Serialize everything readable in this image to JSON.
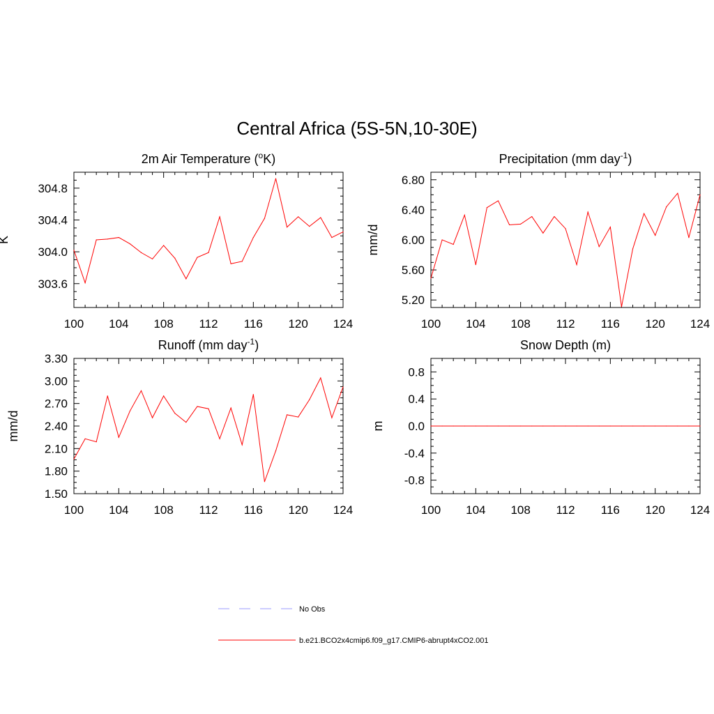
{
  "figure": {
    "title": "Central Africa (5S-5N,10-30E)"
  },
  "colors": {
    "model_line": "#ff0000",
    "obs_line": "#9999ff",
    "axis": "#000000",
    "background": "#ffffff"
  },
  "chart_data": [
    {
      "type": "line",
      "title": "2m Air Temperature (oK)",
      "title_parts": [
        "2m Air Temperature (",
        "o",
        "K)"
      ],
      "ylabel": "K",
      "xlabel": "",
      "xlim": [
        100,
        124
      ],
      "ylim": [
        303.3,
        305.0
      ],
      "xticks": [
        100,
        104,
        108,
        112,
        116,
        120,
        124
      ],
      "xtick_labels": [
        "100",
        "104",
        "108",
        "112",
        "116",
        "120",
        "124"
      ],
      "yticks": [
        303.6,
        304.0,
        304.4,
        304.8
      ],
      "ytick_labels": [
        "303.6",
        "304.0",
        "304.4",
        "304.8"
      ],
      "grid": false,
      "x": [
        100,
        101,
        102,
        103,
        104,
        105,
        106,
        107,
        108,
        109,
        110,
        111,
        112,
        113,
        114,
        115,
        116,
        117,
        118,
        119,
        120,
        121,
        122,
        123,
        124
      ],
      "series": [
        {
          "name": "b.e21.BCO2x4cmip6.f09_g17.CMIP6-abrupt4xCO2.001",
          "values": [
            304.02,
            303.61,
            304.15,
            304.16,
            304.18,
            304.1,
            303.99,
            303.91,
            304.08,
            303.92,
            303.66,
            303.93,
            303.99,
            304.44,
            303.85,
            303.88,
            304.18,
            304.42,
            304.92,
            304.31,
            304.44,
            304.32,
            304.43,
            304.18,
            304.25
          ]
        }
      ]
    },
    {
      "type": "line",
      "title": "Precipitation (mm day-1)",
      "title_parts": [
        "Precipitation (mm day",
        "-1",
        ")"
      ],
      "ylabel": "mm/d",
      "xlabel": "",
      "xlim": [
        100,
        124
      ],
      "ylim": [
        5.1,
        6.9
      ],
      "xticks": [
        100,
        104,
        108,
        112,
        116,
        120,
        124
      ],
      "xtick_labels": [
        "100",
        "104",
        "108",
        "112",
        "116",
        "120",
        "124"
      ],
      "yticks": [
        5.2,
        5.6,
        6.0,
        6.4,
        6.8
      ],
      "ytick_labels": [
        "5.20",
        "5.60",
        "6.00",
        "6.40",
        "6.80"
      ],
      "grid": false,
      "x": [
        100,
        101,
        102,
        103,
        104,
        105,
        106,
        107,
        108,
        109,
        110,
        111,
        112,
        113,
        114,
        115,
        116,
        117,
        118,
        119,
        120,
        121,
        122,
        123,
        124
      ],
      "series": [
        {
          "name": "b.e21.BCO2x4cmip6.f09_g17.CMIP6-abrupt4xCO2.001",
          "values": [
            5.49,
            6.0,
            5.94,
            6.33,
            5.67,
            6.43,
            6.52,
            6.2,
            6.21,
            6.31,
            6.09,
            6.31,
            6.15,
            5.67,
            6.37,
            5.91,
            6.17,
            5.11,
            5.88,
            6.35,
            6.06,
            6.44,
            6.62,
            6.03,
            6.6
          ]
        }
      ]
    },
    {
      "type": "line",
      "title": "Runoff (mm day-1)",
      "title_parts": [
        "Runoff (mm day",
        "-1",
        ")"
      ],
      "ylabel": "mm/d",
      "xlabel": "",
      "xlim": [
        100,
        124
      ],
      "ylim": [
        1.5,
        3.3
      ],
      "xticks": [
        100,
        104,
        108,
        112,
        116,
        120,
        124
      ],
      "xtick_labels": [
        "100",
        "104",
        "108",
        "112",
        "116",
        "120",
        "124"
      ],
      "yticks": [
        1.5,
        1.8,
        2.1,
        2.4,
        2.7,
        3.0,
        3.3
      ],
      "ytick_labels": [
        "1.50",
        "1.80",
        "2.10",
        "2.40",
        "2.70",
        "3.00",
        "3.30"
      ],
      "grid": false,
      "x": [
        100,
        101,
        102,
        103,
        104,
        105,
        106,
        107,
        108,
        109,
        110,
        111,
        112,
        113,
        114,
        115,
        116,
        117,
        118,
        119,
        120,
        121,
        122,
        123,
        124
      ],
      "series": [
        {
          "name": "b.e21.BCO2x4cmip6.f09_g17.CMIP6-abrupt4xCO2.001",
          "values": [
            1.96,
            2.23,
            2.19,
            2.8,
            2.25,
            2.6,
            2.87,
            2.51,
            2.8,
            2.57,
            2.45,
            2.66,
            2.63,
            2.23,
            2.64,
            2.15,
            2.82,
            1.66,
            2.07,
            2.55,
            2.52,
            2.75,
            3.04,
            2.51,
            2.92
          ]
        }
      ]
    },
    {
      "type": "line",
      "title": "Snow Depth (m)",
      "title_parts": [
        "Snow Depth (m)",
        "",
        ""
      ],
      "ylabel": "m",
      "xlabel": "",
      "xlim": [
        100,
        124
      ],
      "ylim": [
        -1.0,
        1.0
      ],
      "xticks": [
        100,
        104,
        108,
        112,
        116,
        120,
        124
      ],
      "xtick_labels": [
        "100",
        "104",
        "108",
        "112",
        "116",
        "120",
        "124"
      ],
      "yticks": [
        -0.8,
        -0.4,
        0.0,
        0.4,
        0.8
      ],
      "ytick_labels": [
        "-0.8",
        "-0.4",
        "0.0",
        "0.4",
        "0.8"
      ],
      "grid": false,
      "x": [
        100,
        101,
        102,
        103,
        104,
        105,
        106,
        107,
        108,
        109,
        110,
        111,
        112,
        113,
        114,
        115,
        116,
        117,
        118,
        119,
        120,
        121,
        122,
        123,
        124
      ],
      "series": [
        {
          "name": "b.e21.BCO2x4cmip6.f09_g17.CMIP6-abrupt4xCO2.001",
          "values": [
            0,
            0,
            0,
            0,
            0,
            0,
            0,
            0,
            0,
            0,
            0,
            0,
            0,
            0,
            0,
            0,
            0,
            0,
            0,
            0,
            0,
            0,
            0,
            0,
            0
          ]
        }
      ]
    }
  ],
  "legend": {
    "placement": "bottom-center",
    "items": [
      {
        "label": "No Obs",
        "style": "dashed",
        "color": "#9999ff"
      },
      {
        "label": "b.e21.BCO2x4cmip6.f09_g17.CMIP6-abrupt4xCO2.001",
        "style": "solid",
        "color": "#ff0000"
      }
    ]
  }
}
